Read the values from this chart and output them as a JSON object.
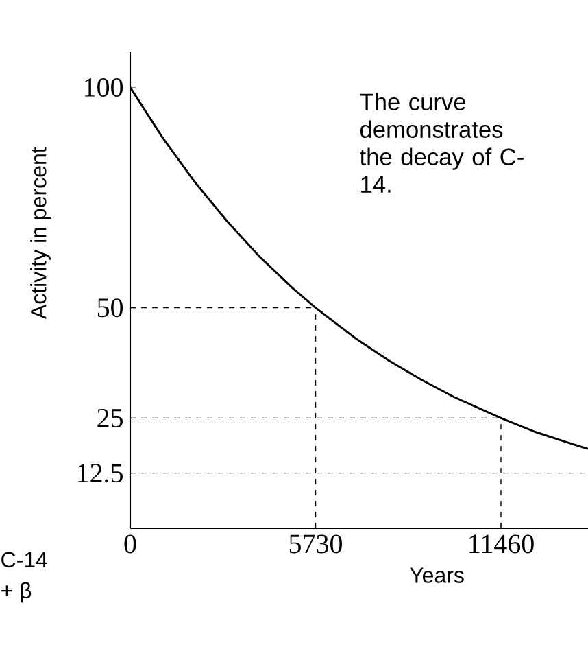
{
  "chart_data": {
    "type": "line",
    "xlabel": "Years",
    "ylabel": "Activity in percent",
    "annotations": [
      "The curve demonstrates the decay of C-14.",
      "C-14",
      "+ β"
    ],
    "x": [
      0,
      1000,
      2000,
      3000,
      4000,
      5000,
      5730,
      7000,
      8000,
      9000,
      10000,
      11460,
      12500,
      13500,
      14150
    ],
    "series": [
      {
        "color": "#000000",
        "values": [
          100,
          88.6,
          78.5,
          69.6,
          61.6,
          54.6,
          50,
          42.9,
          38.0,
          33.7,
          29.8,
          25,
          21.9,
          19.5,
          18.0
        ]
      }
    ],
    "xlim": [
      0,
      14150
    ],
    "ylim": [
      0,
      108
    ],
    "xticks": [
      0,
      5730,
      11460
    ],
    "yticks": [
      100,
      50,
      25,
      12.5
    ],
    "ref_lines": [
      {
        "axis": "y",
        "value": 50,
        "line_style": "dashed"
      },
      {
        "axis": "y",
        "value": 25,
        "line_style": "dashed"
      },
      {
        "axis": "y",
        "value": 12.5,
        "line_style": "dashed"
      },
      {
        "axis": "x",
        "value": 5730,
        "line_style": "dashed"
      },
      {
        "axis": "x",
        "value": 11460,
        "line_style": "dashed"
      }
    ],
    "grid": false,
    "marker": "none",
    "line_style": "solid"
  }
}
